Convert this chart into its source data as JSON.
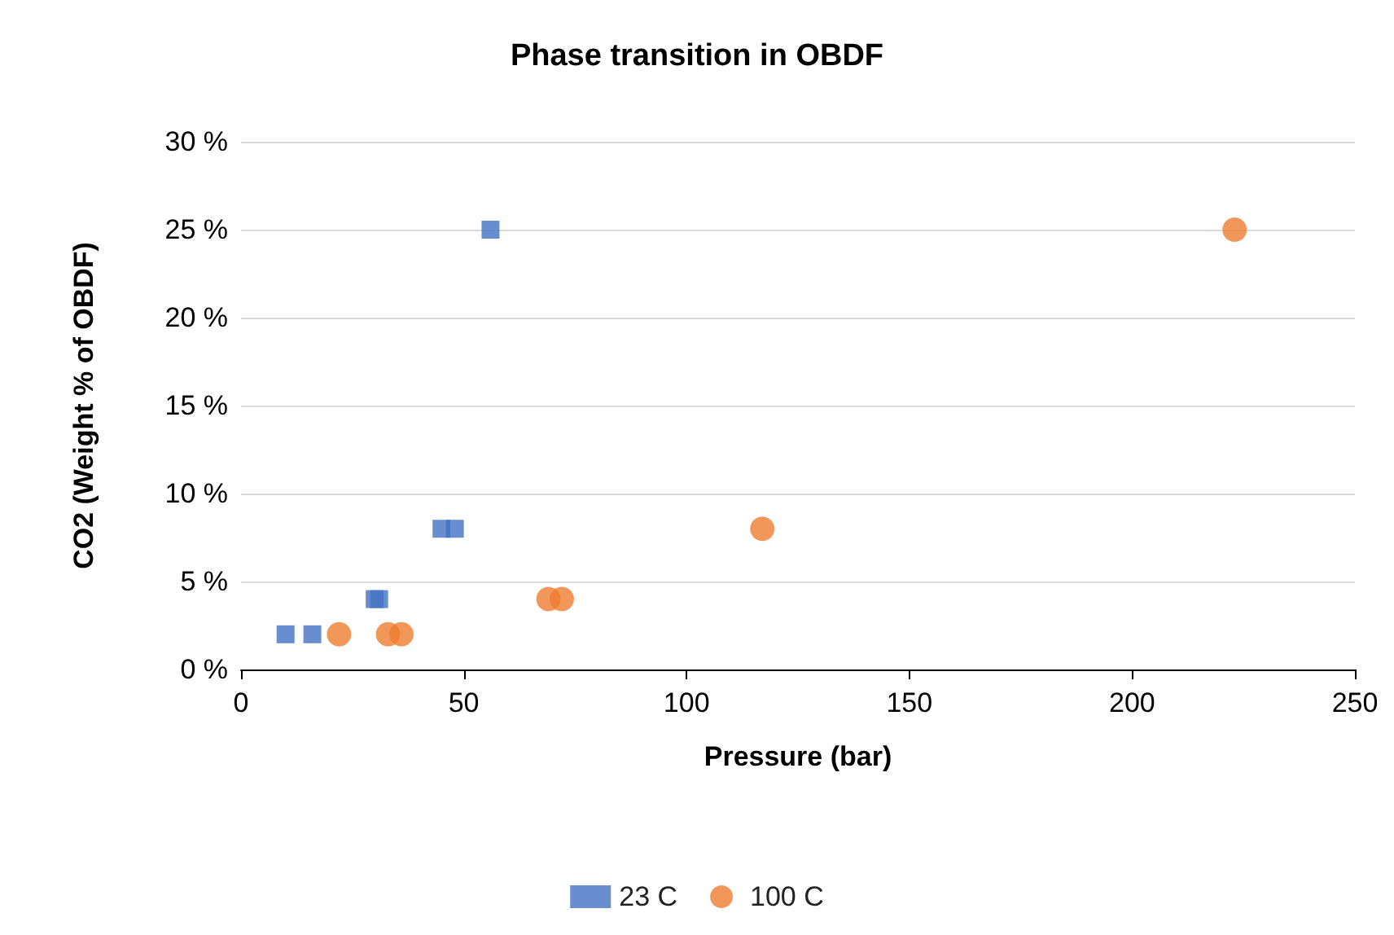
{
  "chart_data": {
    "type": "scatter",
    "title": "Phase transition in OBDF",
    "xlabel": "Pressure (bar)",
    "ylabel": "CO2 (Weight % of OBDF)",
    "series": [
      {
        "name": "23 C",
        "color": "#4472c4",
        "marker": "square",
        "x": [
          10,
          16,
          30,
          31,
          45,
          48,
          56
        ],
        "values": [
          2,
          2,
          4,
          4,
          8,
          8,
          25
        ]
      },
      {
        "name": "100 C",
        "color": "#ed7d31",
        "marker": "circle",
        "x": [
          22,
          33,
          36,
          69,
          72,
          117,
          223
        ],
        "values": [
          2,
          2,
          2,
          4,
          4,
          8,
          25
        ]
      }
    ],
    "xlim": [
      0,
      250
    ],
    "xticks": [
      0,
      50,
      100,
      150,
      200,
      250
    ],
    "ylim": [
      0,
      30
    ],
    "yticks": [
      {
        "value": 0,
        "label": "0 %"
      },
      {
        "value": 5,
        "label": "5 %"
      },
      {
        "value": 10,
        "label": "10 %"
      },
      {
        "value": 15,
        "label": "15 %"
      },
      {
        "value": 20,
        "label": "20 %"
      },
      {
        "value": 25,
        "label": "25 %"
      },
      {
        "value": 30,
        "label": "30 %"
      }
    ],
    "grid": "y",
    "legend": "bottom"
  }
}
